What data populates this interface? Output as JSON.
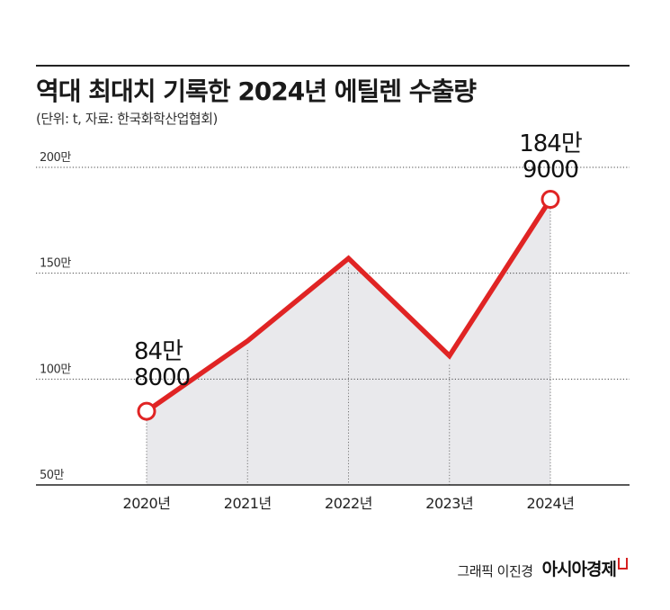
{
  "header": {
    "title": "역대 최대치 기록한 2024년 에틸렌 수출량",
    "subtitle": "(단위: t, 자료: 한국화학산업협회)"
  },
  "footer": {
    "credit": "그래픽 이진경",
    "brand": "아시아경제"
  },
  "colors": {
    "line": "#e02424",
    "area": "#e9e9ec",
    "marker_fill": "#ffffff"
  },
  "chart_data": {
    "type": "line",
    "title": "역대 최대치 기록한 2024년 에틸렌 수출량",
    "categories": [
      "2020년",
      "2021년",
      "2022년",
      "2023년",
      "2024년"
    ],
    "values": [
      848000,
      1180000,
      1570000,
      1110000,
      1849000
    ],
    "ylim": [
      500000,
      2000000
    ],
    "yticks": [
      {
        "value": 500000,
        "label": "50만"
      },
      {
        "value": 1000000,
        "label": "100만"
      },
      {
        "value": 1500000,
        "label": "150만"
      },
      {
        "value": 2000000,
        "label": "200만"
      }
    ],
    "grid": true,
    "annotations": [
      {
        "index": 0,
        "lines": [
          "84만",
          "8000"
        ]
      },
      {
        "index": 4,
        "lines": [
          "184만",
          "9000"
        ]
      }
    ]
  }
}
